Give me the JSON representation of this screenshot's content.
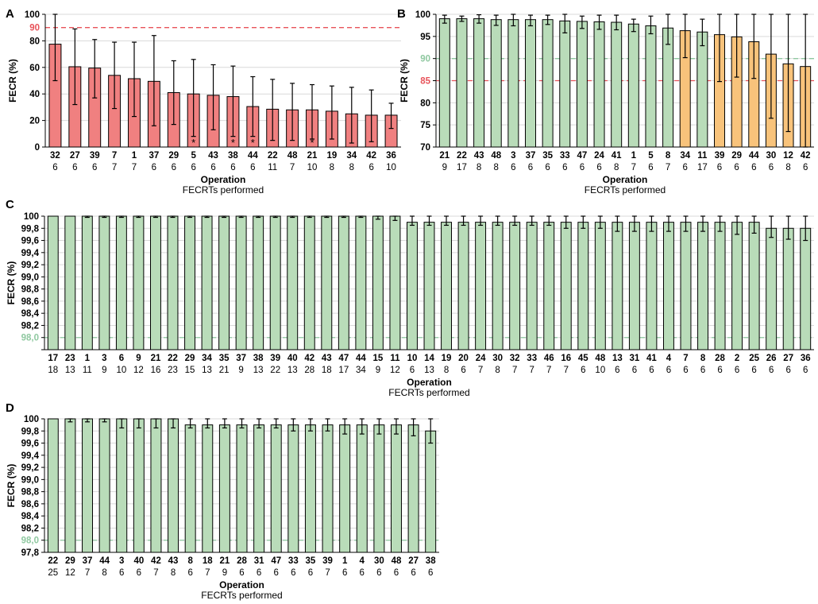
{
  "chart_data": [
    {
      "panel": "A",
      "type": "bar",
      "ylabel": "FECR (%)",
      "xlabel": "Operation",
      "xsublabel": "FECRTs performed",
      "ylim": [
        0,
        100
      ],
      "yticks": [
        "0",
        "20",
        "40",
        "60",
        "80",
        "100"
      ],
      "threshold_lines": [
        {
          "value": 90,
          "label": "90",
          "color": "#e8535a"
        }
      ],
      "categories": [
        "32",
        "27",
        "39",
        "7",
        "1",
        "37",
        "29",
        "5",
        "43",
        "38",
        "44",
        "22",
        "48",
        "21",
        "19",
        "34",
        "42",
        "36"
      ],
      "fecrts": [
        "6",
        "6",
        "6",
        "7",
        "7",
        "6",
        "6",
        "6",
        "6",
        "6",
        "6",
        "11",
        "7",
        "10",
        "8",
        "8",
        "6",
        "10"
      ],
      "values": [
        77.5,
        60.5,
        59.5,
        54,
        51.5,
        49.5,
        41,
        40,
        39,
        38,
        30.5,
        28.5,
        28,
        28,
        27,
        25,
        24,
        24
      ],
      "err_high": [
        100,
        89,
        81,
        79,
        79,
        84,
        65,
        66,
        62,
        61,
        53,
        51,
        48,
        47,
        46,
        45,
        43,
        33
      ],
      "err_low": [
        50,
        32,
        37,
        29,
        23,
        16,
        17,
        8,
        13,
        8,
        8,
        5,
        5,
        6,
        6,
        3,
        4,
        14
      ],
      "colors": [
        "#f08080",
        "#f08080",
        "#f08080",
        "#f08080",
        "#f08080",
        "#f08080",
        "#f08080",
        "#f08080",
        "#f08080",
        "#f08080",
        "#f08080",
        "#f08080",
        "#f08080",
        "#f08080",
        "#f08080",
        "#f08080",
        "#f08080",
        "#f08080"
      ],
      "annotations": [
        {
          "index": 7,
          "text": "*"
        },
        {
          "index": 9,
          "text": "*"
        },
        {
          "index": 10,
          "text": "*"
        },
        {
          "index": 13,
          "text": "*"
        }
      ]
    },
    {
      "panel": "B",
      "type": "bar",
      "ylabel": "FECR (%)",
      "xlabel": "Operation",
      "xsublabel": "FECRTs performed",
      "ylim": [
        70,
        100
      ],
      "yticks": [
        "70",
        "75",
        "80",
        "85",
        "90",
        "95",
        "100"
      ],
      "threshold_lines": [
        {
          "value": 90,
          "color": "#8fc8a0"
        },
        {
          "value": 85,
          "color": "#e8535a"
        }
      ],
      "categories": [
        "21",
        "22",
        "43",
        "48",
        "3",
        "37",
        "35",
        "33",
        "47",
        "24",
        "41",
        "1",
        "5",
        "8",
        "34",
        "11",
        "39",
        "29",
        "44",
        "30",
        "12",
        "42"
      ],
      "fecrts": [
        "9",
        "17",
        "8",
        "8",
        "6",
        "6",
        "6",
        "6",
        "6",
        "6",
        "8",
        "7",
        "6",
        "7",
        "6",
        "17",
        "6",
        "6",
        "6",
        "6",
        "8",
        "6"
      ],
      "values": [
        99,
        99,
        99,
        98.8,
        98.8,
        98.8,
        98.8,
        98.5,
        98.4,
        98.3,
        98.2,
        97.8,
        97.4,
        96.9,
        96.3,
        96.0,
        95.4,
        94.9,
        93.8,
        91.0,
        88.8,
        88.2
      ],
      "err_high": [
        99.8,
        99.6,
        99.9,
        99.8,
        100,
        99.8,
        99.8,
        100,
        99.6,
        99.8,
        99.8,
        98.9,
        99.6,
        100,
        100,
        98.9,
        100,
        100,
        100,
        100,
        100,
        100
      ],
      "err_low": [
        98,
        98.4,
        98,
        97.5,
        97.4,
        97.4,
        97.7,
        95.8,
        96.8,
        96.6,
        96.5,
        96.1,
        95.6,
        93.2,
        90.2,
        92.9,
        84.8,
        85.8,
        85.5,
        76.5,
        73.5,
        70
      ],
      "colors": [
        "#b9dcb9",
        "#b9dcb9",
        "#b9dcb9",
        "#b9dcb9",
        "#b9dcb9",
        "#b9dcb9",
        "#b9dcb9",
        "#b9dcb9",
        "#b9dcb9",
        "#b9dcb9",
        "#b9dcb9",
        "#b9dcb9",
        "#b9dcb9",
        "#b9dcb9",
        "#f8c37b",
        "#b9dcb9",
        "#f8c37b",
        "#f8c37b",
        "#f8c37b",
        "#f8c37b",
        "#f8c37b",
        "#f8c37b"
      ]
    },
    {
      "panel": "C",
      "type": "bar",
      "ylabel": "FECR (%)",
      "xlabel": "Operation",
      "xsublabel": "FECRTs performed",
      "ylim": [
        97.8,
        100
      ],
      "yticks": [
        "",
        "98,0",
        "98,2",
        "98,4",
        "98,6",
        "98,8",
        "99,0",
        "99,2",
        "99,4",
        "99,6",
        "99,8",
        "100"
      ],
      "threshold_lines": [
        {
          "value": 98.0,
          "color": "#8fc8a0"
        }
      ],
      "categories": [
        "17",
        "23",
        "1",
        "3",
        "6",
        "9",
        "21",
        "22",
        "29",
        "34",
        "35",
        "37",
        "38",
        "39",
        "40",
        "42",
        "43",
        "47",
        "44",
        "15",
        "11",
        "10",
        "14",
        "19",
        "20",
        "24",
        "30",
        "32",
        "33",
        "46",
        "16",
        "45",
        "48",
        "13",
        "31",
        "41",
        "4",
        "7",
        "8",
        "28",
        "2",
        "25",
        "26",
        "27",
        "36"
      ],
      "fecrts": [
        "18",
        "13",
        "11",
        "9",
        "10",
        "12",
        "16",
        "23",
        "15",
        "13",
        "21",
        "9",
        "13",
        "22",
        "13",
        "28",
        "18",
        "17",
        "34",
        "9",
        "12",
        "6",
        "13",
        "8",
        "6",
        "7",
        "8",
        "7",
        "7",
        "7",
        "7",
        "6",
        "10",
        "6",
        "6",
        "6",
        "6",
        "6",
        "6",
        "6",
        "6",
        "6",
        "6",
        "6",
        "6"
      ],
      "values": [
        100,
        100,
        100,
        100,
        100,
        100,
        100,
        100,
        100,
        100,
        100,
        100,
        100,
        100,
        100,
        100,
        100,
        100,
        100,
        100,
        100,
        99.9,
        99.9,
        99.9,
        99.9,
        99.9,
        99.9,
        99.9,
        99.9,
        99.9,
        99.9,
        99.9,
        99.9,
        99.9,
        99.9,
        99.9,
        99.9,
        99.9,
        99.9,
        99.9,
        99.9,
        99.9,
        99.8,
        99.8,
        99.8
      ],
      "err_high": [
        100,
        100,
        100,
        100,
        100,
        100,
        100,
        100,
        100,
        100,
        100,
        100,
        100,
        100,
        100,
        100,
        100,
        100,
        100,
        100,
        100,
        100,
        100,
        100,
        100,
        100,
        100,
        100,
        100,
        100,
        100,
        100,
        100,
        100,
        100,
        100,
        100,
        100,
        100,
        100,
        100,
        100,
        100,
        100,
        100
      ],
      "err_low": [
        100,
        100,
        99.98,
        99.98,
        99.98,
        99.98,
        99.98,
        99.98,
        99.98,
        99.98,
        99.98,
        99.98,
        99.98,
        99.98,
        99.98,
        99.98,
        99.98,
        99.98,
        99.98,
        99.95,
        99.93,
        99.85,
        99.85,
        99.85,
        99.85,
        99.85,
        99.85,
        99.85,
        99.85,
        99.85,
        99.8,
        99.8,
        99.8,
        99.75,
        99.75,
        99.75,
        99.75,
        99.75,
        99.75,
        99.75,
        99.7,
        99.72,
        99.65,
        99.62,
        99.6
      ],
      "colors": [
        "#b9dcb9"
      ]
    },
    {
      "panel": "D",
      "type": "bar",
      "ylabel": "FECR (%)",
      "xlabel": "Operation",
      "xsublabel": "FECRTs performed",
      "ylim": [
        97.8,
        100
      ],
      "yticks": [
        "97,8",
        "98,0",
        "98,2",
        "98,4",
        "98,6",
        "98,8",
        "99,0",
        "99,2",
        "99,4",
        "99,6",
        "99,8",
        "100"
      ],
      "threshold_lines": [
        {
          "value": 98.0,
          "color": "#8fc8a0"
        }
      ],
      "categories": [
        "22",
        "29",
        "37",
        "44",
        "3",
        "40",
        "42",
        "43",
        "8",
        "18",
        "21",
        "28",
        "31",
        "47",
        "33",
        "35",
        "39",
        "1",
        "4",
        "30",
        "48",
        "27",
        "38"
      ],
      "fecrts": [
        "25",
        "12",
        "7",
        "8",
        "6",
        "6",
        "7",
        "8",
        "6",
        "7",
        "9",
        "6",
        "6",
        "6",
        "6",
        "6",
        "7",
        "6",
        "6",
        "6",
        "6",
        "6",
        "6"
      ],
      "values": [
        100,
        100,
        100,
        100,
        100,
        100,
        100,
        100,
        99.9,
        99.9,
        99.9,
        99.9,
        99.9,
        99.9,
        99.9,
        99.9,
        99.9,
        99.9,
        99.9,
        99.9,
        99.9,
        99.9,
        99.8
      ],
      "err_high": [
        100,
        100,
        100,
        100,
        100,
        100,
        100,
        100,
        100,
        100,
        100,
        100,
        100,
        100,
        100,
        100,
        100,
        100,
        100,
        100,
        100,
        100,
        100
      ],
      "err_low": [
        100,
        99.95,
        99.95,
        99.95,
        99.85,
        99.85,
        99.85,
        99.85,
        99.85,
        99.85,
        99.85,
        99.85,
        99.85,
        99.85,
        99.8,
        99.8,
        99.8,
        99.75,
        99.75,
        99.75,
        99.75,
        99.72,
        99.6
      ],
      "colors": [
        "#b9dcb9"
      ]
    }
  ]
}
